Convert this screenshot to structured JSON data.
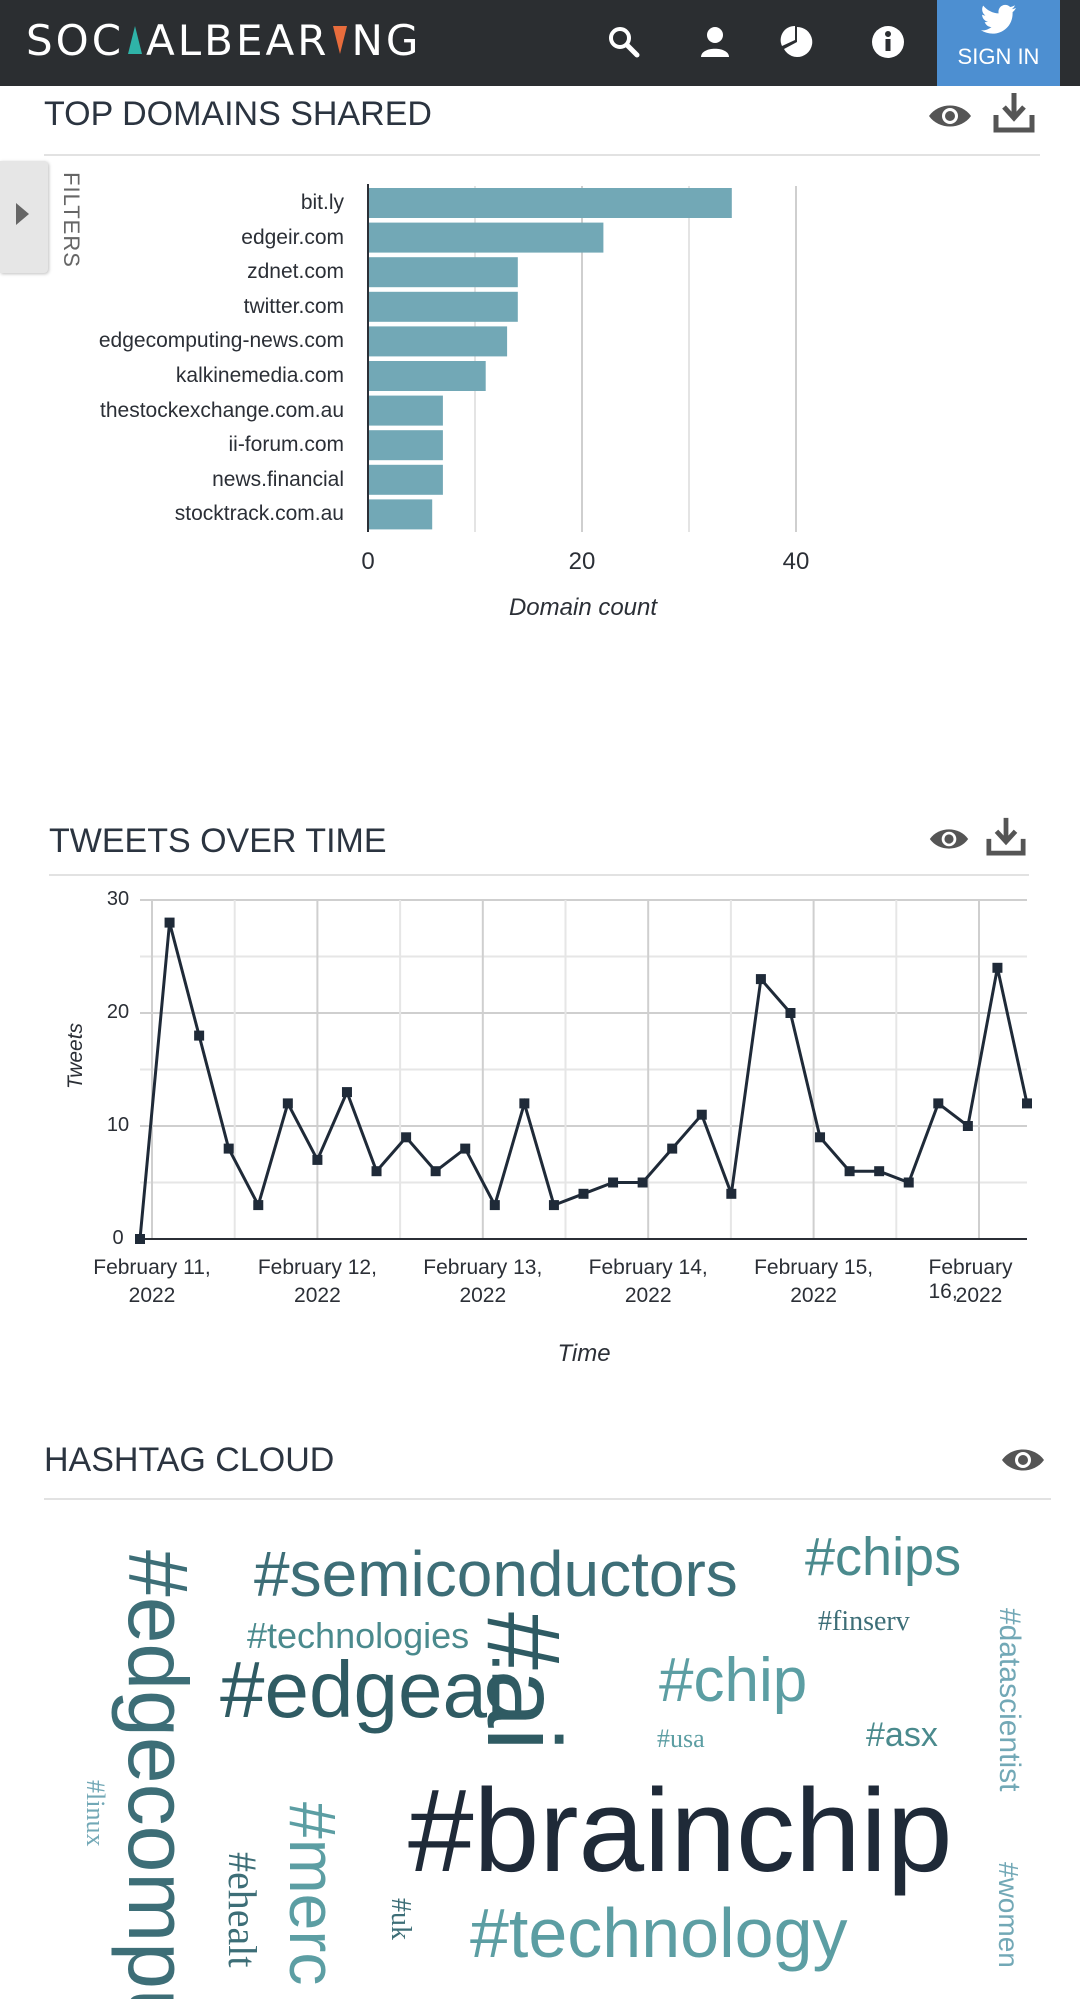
{
  "app": {
    "logo_text_parts": [
      "SOC",
      "ALBEAR",
      "NG"
    ],
    "signin_label": "SIGN IN"
  },
  "nav": {
    "icons": [
      "search-icon",
      "user-icon",
      "pie-chart-icon",
      "info-icon"
    ]
  },
  "filters": {
    "label": "FILTERS"
  },
  "domains": {
    "title": "TOP DOMAINS SHARED",
    "chart_data": {
      "type": "bar",
      "orientation": "horizontal",
      "categories": [
        "bit.ly",
        "edgeir.com",
        "zdnet.com",
        "twitter.com",
        "edgecomputing-news.com",
        "kalkinemedia.com",
        "thestockexchange.com.au",
        "ii-forum.com",
        "news.financial",
        "stocktrack.com.au"
      ],
      "values": [
        34,
        22,
        14,
        14,
        13,
        11,
        7,
        7,
        7,
        6
      ],
      "xlabel": "Domain count",
      "xticks": [
        "0",
        "20",
        "40"
      ],
      "xlim": [
        0,
        40
      ],
      "grid": true,
      "color": "#72a8b6"
    }
  },
  "tweets": {
    "title": "TWEETS OVER TIME",
    "chart_data": {
      "type": "line",
      "xlabel": "Time",
      "ylabel": "Tweets",
      "ylim": [
        0,
        30
      ],
      "yticks": [
        "0",
        "10",
        "20",
        "30"
      ],
      "xticks": [
        {
          "line1": "February 11,",
          "line2": "2022"
        },
        {
          "line1": "February 12,",
          "line2": "2022"
        },
        {
          "line1": "February 13,",
          "line2": "2022"
        },
        {
          "line1": "February 14,",
          "line2": "2022"
        },
        {
          "line1": "February 15,",
          "line2": "2022"
        },
        {
          "line1": "February 16,",
          "line2": "2022"
        }
      ],
      "series": [
        {
          "values": [
            0,
            28,
            18,
            8,
            3,
            12,
            7,
            13,
            6,
            9,
            6,
            8,
            3,
            12,
            3,
            4,
            5,
            5,
            8,
            11,
            4,
            23,
            20,
            9,
            6,
            6,
            5,
            12,
            10,
            24,
            12
          ]
        }
      ],
      "grid": true,
      "color": "#1f2a38"
    }
  },
  "hashtags": {
    "title": "HASHTAG CLOUD",
    "words": [
      {
        "text": "#semiconductors",
        "color": "#3d6e77"
      },
      {
        "text": "#chips",
        "color": "#4a8a8d"
      },
      {
        "text": "#technologies",
        "color": "#4a8a8d"
      },
      {
        "text": "#finserv",
        "color": "#3d6e77"
      },
      {
        "text": "#edgeai",
        "color": "#2f5b63"
      },
      {
        "text": "#ai",
        "color": "#2f5b63"
      },
      {
        "text": "#chip",
        "color": "#5c9ea3"
      },
      {
        "text": "#usa",
        "color": "#5c9ea3"
      },
      {
        "text": "#asx",
        "color": "#4a8a8d"
      },
      {
        "text": "#datascientist",
        "color": "#72a8b6"
      },
      {
        "text": "#edgecomput",
        "color": "#3d6e77"
      },
      {
        "text": "#linux",
        "color": "#72a8b6"
      },
      {
        "text": "#brainchip",
        "color": "#1f2a38"
      },
      {
        "text": "#merc",
        "color": "#5c9ea3"
      },
      {
        "text": "#ehealt",
        "color": "#3d6e77"
      },
      {
        "text": "#uk",
        "color": "#3d6e77"
      },
      {
        "text": "#technology",
        "color": "#5c9ea3"
      },
      {
        "text": "#women",
        "color": "#72a8b6"
      }
    ]
  }
}
